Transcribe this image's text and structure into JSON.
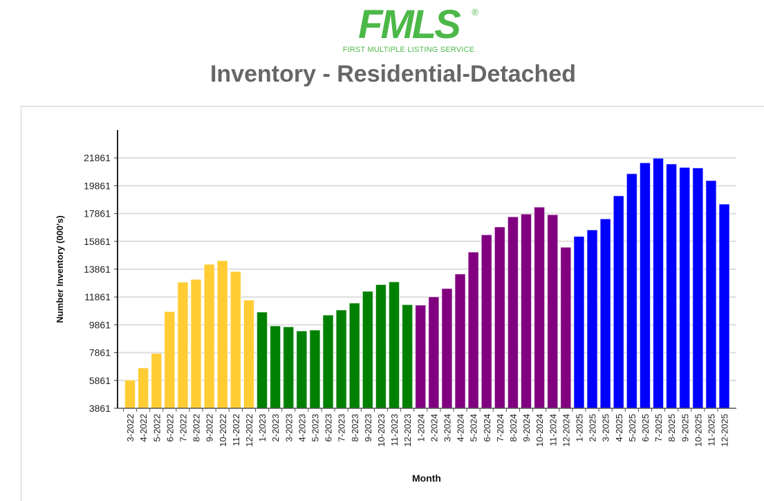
{
  "logo": {
    "text": "FMLS",
    "registered": "®",
    "subtitle": "FIRST MULTIPLE LISTING SERVICE"
  },
  "colors": {
    "2022": "#FFCC33",
    "2023": "#008000",
    "2024": "#800080",
    "2025": "#0000FF"
  },
  "chart_data": {
    "type": "bar",
    "title": "Inventory - Residential-Detached",
    "xlabel": "Month",
    "ylabel": "Number Inventory (000's)",
    "ylim": [
      3861,
      23000
    ],
    "yticks": [
      3861,
      5861,
      7861,
      9861,
      11861,
      13861,
      15861,
      17861,
      19861,
      21861
    ],
    "grid": true,
    "categories": [
      "3-2022",
      "4-2022",
      "5-2022",
      "6-2022",
      "7-2022",
      "8-2022",
      "9-2022",
      "10-2022",
      "11-2022",
      "12-2022",
      "1-2023",
      "2-2023",
      "3-2023",
      "4-2023",
      "5-2023",
      "6-2023",
      "7-2023",
      "8-2023",
      "9-2023",
      "10-2023",
      "11-2023",
      "12-2023",
      "1-2024",
      "2-2024",
      "3-2024",
      "4-2024",
      "5-2024",
      "6-2024",
      "7-2024",
      "8-2024",
      "9-2024",
      "10-2024",
      "11-2024",
      "12-2024",
      "1-2025",
      "2-2025",
      "3-2025",
      "4-2025",
      "5-2025",
      "6-2025",
      "7-2025",
      "8-2025",
      "9-2025",
      "10-2025",
      "11-2025",
      "12-2025"
    ],
    "values": [
      5886,
      6761,
      7806,
      10811,
      12930,
      13129,
      14209,
      14473,
      13696,
      11637,
      10776,
      9781,
      9716,
      9418,
      9483,
      10562,
      10925,
      11423,
      12269,
      12751,
      12950,
      11309,
      11274,
      11871,
      12468,
      13513,
      15090,
      16333,
      16896,
      17627,
      17826,
      18323,
      17776,
      15438,
      16214,
      16682,
      17478,
      19134,
      20726,
      21507,
      21836,
      21423,
      21174,
      21139,
      20229,
      18537
    ]
  }
}
